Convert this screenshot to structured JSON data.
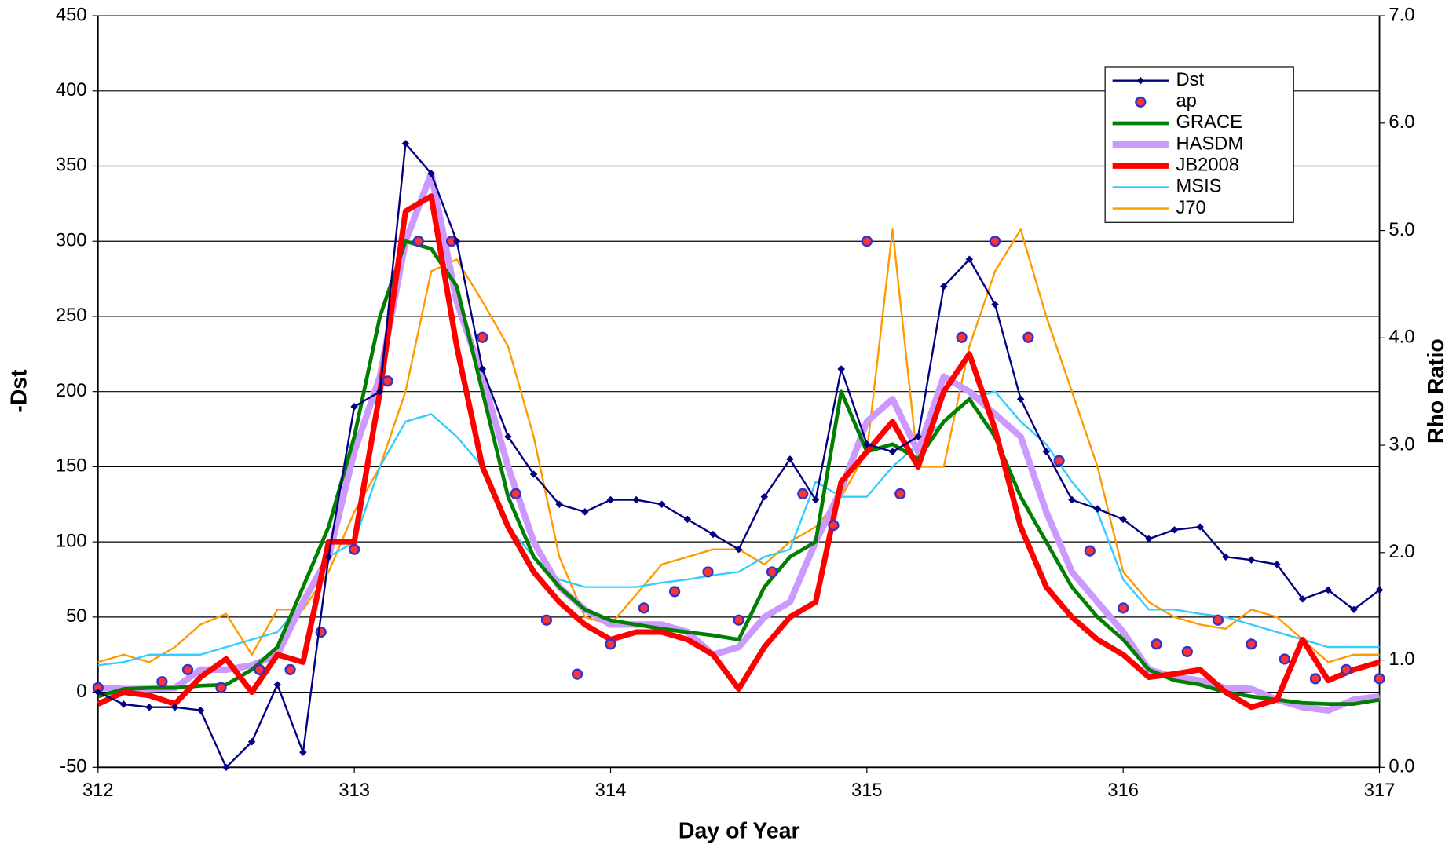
{
  "chart_data": {
    "type": "line",
    "x_label": "Day of Year",
    "y_label": "-Dst",
    "y2_label": "Rho Ratio",
    "xlim": [
      312,
      317
    ],
    "xticks": [
      312,
      313,
      314,
      315,
      316,
      317
    ],
    "ylim": [
      -50,
      450
    ],
    "yticks": [
      -50,
      0,
      50,
      100,
      150,
      200,
      250,
      300,
      350,
      400,
      450
    ],
    "y2lim": [
      0,
      7
    ],
    "y2ticks": [
      {
        "value": 0,
        "label": "0.0"
      },
      {
        "value": 1,
        "label": "1.0"
      },
      {
        "value": 2,
        "label": "2.0"
      },
      {
        "value": 3,
        "label": "3.0"
      },
      {
        "value": 4,
        "label": "4.0"
      },
      {
        "value": 5,
        "label": "5.0"
      },
      {
        "value": 6,
        "label": "6.0"
      },
      {
        "value": 7,
        "label": "7.0"
      }
    ],
    "grid": true,
    "legend": "upper right",
    "x": [
      312.0,
      312.1,
      312.2,
      312.3,
      312.4,
      312.5,
      312.6,
      312.7,
      312.8,
      312.9,
      313.0,
      313.1,
      313.2,
      313.3,
      313.4,
      313.5,
      313.6,
      313.7,
      313.8,
      313.9,
      314.0,
      314.1,
      314.2,
      314.3,
      314.4,
      314.5,
      314.6,
      314.7,
      314.8,
      314.9,
      315.0,
      315.1,
      315.2,
      315.3,
      315.4,
      315.5,
      315.6,
      315.7,
      315.8,
      315.9,
      316.0,
      316.1,
      316.2,
      316.3,
      316.4,
      316.5,
      316.6,
      316.7,
      316.8,
      316.9,
      317.0
    ],
    "series": [
      {
        "name": "Dst",
        "color": "#000080",
        "marker": "diamond",
        "line": true,
        "values": [
          0,
          -8,
          -10,
          -10,
          -12,
          -50,
          -33,
          5,
          -40,
          90,
          190,
          200,
          365,
          345,
          300,
          215,
          170,
          145,
          125,
          120,
          128,
          128,
          125,
          115,
          105,
          95,
          130,
          155,
          128,
          215,
          165,
          160,
          170,
          270,
          288,
          258,
          195,
          160,
          128,
          122,
          115,
          102,
          108,
          110,
          90,
          88,
          85,
          62,
          68,
          55,
          68
        ]
      },
      {
        "name": "ap",
        "color": "#ff3333",
        "edge": "#3333cc",
        "marker": "circle",
        "line": false,
        "x": [
          312.0,
          312.25,
          312.35,
          312.48,
          312.63,
          312.75,
          312.87,
          313.0,
          313.13,
          313.25,
          313.38,
          313.5,
          313.63,
          313.75,
          313.87,
          314.0,
          314.13,
          314.25,
          314.38,
          314.5,
          314.63,
          314.75,
          314.87,
          315.0,
          315.13,
          315.37,
          315.5,
          315.63,
          315.75,
          315.87,
          316.0,
          316.13,
          316.25,
          316.37,
          316.5,
          316.63,
          316.75,
          316.87,
          317.0
        ],
        "values": [
          3,
          7,
          15,
          3,
          15,
          15,
          40,
          95,
          207,
          300,
          300,
          236,
          132,
          48,
          12,
          32,
          56,
          67,
          80,
          48,
          80,
          132,
          111,
          300,
          132,
          236,
          300,
          236,
          154,
          94,
          56,
          32,
          27,
          48,
          32,
          22,
          9,
          15,
          9
        ]
      },
      {
        "name": "GRACE",
        "color": "#007f00",
        "axis": "y2",
        "line": true,
        "values": [
          0.66,
          0.73,
          0.74,
          0.74,
          0.76,
          0.77,
          0.91,
          1.12,
          1.68,
          2.24,
          3.08,
          4.2,
          4.9,
          4.83,
          4.48,
          3.5,
          2.52,
          1.96,
          1.68,
          1.47,
          1.37,
          1.33,
          1.29,
          1.26,
          1.23,
          1.19,
          1.68,
          1.96,
          2.1,
          3.5,
          2.94,
          3.01,
          2.87,
          3.22,
          3.43,
          3.08,
          2.52,
          2.1,
          1.68,
          1.4,
          1.19,
          0.91,
          0.81,
          0.77,
          0.7,
          0.66,
          0.63,
          0.6,
          0.59,
          0.59,
          0.63
        ]
      },
      {
        "name": "HASDM",
        "color": "#cc99ff",
        "axis": "y2",
        "line": true,
        "values": [
          0.74,
          0.73,
          0.73,
          0.74,
          0.91,
          0.91,
          0.95,
          1.05,
          1.54,
          1.96,
          2.94,
          3.64,
          4.9,
          5.53,
          4.34,
          3.64,
          2.8,
          2.1,
          1.68,
          1.47,
          1.33,
          1.33,
          1.33,
          1.26,
          1.05,
          1.12,
          1.4,
          1.54,
          2.1,
          2.59,
          3.22,
          3.43,
          2.94,
          3.64,
          3.5,
          3.29,
          3.08,
          2.38,
          1.82,
          1.54,
          1.26,
          0.91,
          0.84,
          0.81,
          0.74,
          0.73,
          0.63,
          0.56,
          0.53,
          0.63,
          0.66
        ]
      },
      {
        "name": "JB2008",
        "color": "#ff0000",
        "axis": "y2",
        "line": true,
        "values": [
          0.59,
          0.7,
          0.67,
          0.59,
          0.84,
          1.01,
          0.7,
          1.05,
          0.98,
          2.1,
          2.1,
          3.5,
          5.18,
          5.32,
          3.92,
          2.8,
          2.24,
          1.82,
          1.54,
          1.33,
          1.19,
          1.26,
          1.26,
          1.19,
          1.05,
          0.73,
          1.12,
          1.4,
          1.54,
          2.66,
          2.94,
          3.22,
          2.8,
          3.5,
          3.85,
          3.15,
          2.24,
          1.68,
          1.4,
          1.19,
          1.05,
          0.84,
          0.87,
          0.91,
          0.7,
          0.56,
          0.63,
          1.19,
          0.81,
          0.91,
          0.98
        ]
      },
      {
        "name": "MSIS",
        "color": "#33ccff",
        "axis": "y2",
        "line": true,
        "values": [
          0.95,
          0.98,
          1.05,
          1.05,
          1.05,
          1.12,
          1.19,
          1.26,
          1.54,
          1.96,
          2.1,
          2.8,
          3.22,
          3.29,
          3.08,
          2.8,
          2.24,
          1.96,
          1.75,
          1.68,
          1.68,
          1.68,
          1.72,
          1.75,
          1.79,
          1.82,
          1.96,
          2.03,
          2.66,
          2.52,
          2.52,
          2.8,
          3.01,
          3.22,
          3.43,
          3.5,
          3.22,
          3.01,
          2.66,
          2.38,
          1.75,
          1.47,
          1.47,
          1.43,
          1.4,
          1.33,
          1.26,
          1.19,
          1.12,
          1.12,
          1.12
        ]
      },
      {
        "name": "J70",
        "color": "#ff9900",
        "axis": "y2",
        "line": true,
        "values": [
          0.98,
          1.05,
          0.98,
          1.12,
          1.33,
          1.43,
          1.05,
          1.47,
          1.47,
          1.82,
          2.38,
          2.8,
          3.5,
          4.62,
          4.73,
          4.34,
          3.92,
          3.08,
          1.96,
          1.4,
          1.33,
          1.61,
          1.89,
          1.96,
          2.03,
          2.03,
          1.89,
          2.1,
          2.24,
          2.52,
          2.94,
          5.01,
          2.8,
          2.8,
          3.92,
          4.62,
          5.01,
          4.2,
          3.5,
          2.8,
          1.82,
          1.54,
          1.4,
          1.33,
          1.29,
          1.47,
          1.4,
          1.19,
          0.98,
          1.05,
          1.05
        ]
      }
    ]
  }
}
